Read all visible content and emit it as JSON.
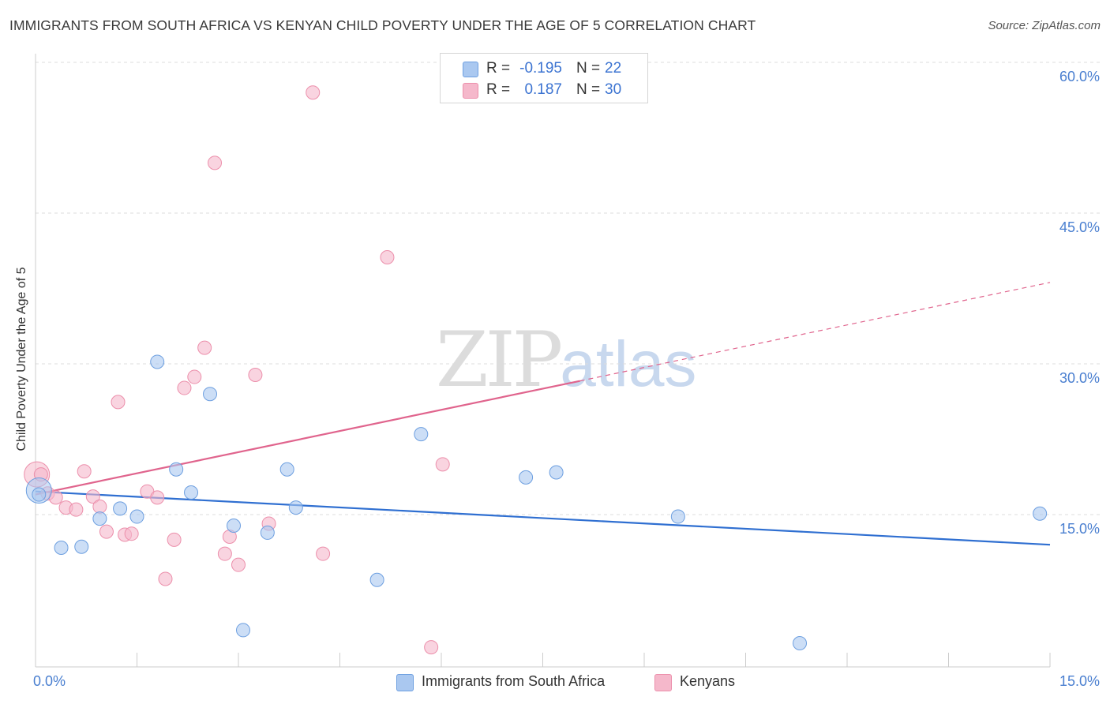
{
  "header": {
    "title": "IMMIGRANTS FROM SOUTH AFRICA VS KENYAN CHILD POVERTY UNDER THE AGE OF 5 CORRELATION CHART",
    "source": "Source: ZipAtlas.com"
  },
  "watermark": {
    "zip": "ZIP",
    "atlas": "atlas"
  },
  "legend_top": {
    "rows": [
      {
        "r_label": "R =",
        "r_value": "-0.195",
        "n_label": "N =",
        "n_value": "22",
        "color": "#aac8f0"
      },
      {
        "r_label": "R =",
        "r_value": "0.187",
        "n_label": "N =",
        "n_value": "30",
        "color": "#f5b8cb"
      }
    ]
  },
  "legend_bottom": {
    "items": [
      {
        "label": "Immigrants from South Africa",
        "color": "#aac8f0"
      },
      {
        "label": "Kenyans",
        "color": "#f5b8cb"
      }
    ]
  },
  "chart_data": {
    "type": "scatter",
    "ylabel": "Child Poverty Under the Age of 5",
    "xlabel": "",
    "xlim": [
      0,
      15
    ],
    "ylim": [
      0,
      60
    ],
    "x_tick_labels": [
      {
        "value": 0,
        "label": "0.0%"
      },
      {
        "value": 15,
        "label": "15.0%"
      }
    ],
    "y_tick_labels": [
      {
        "value": 15,
        "label": "15.0%"
      },
      {
        "value": 30,
        "label": "30.0%"
      },
      {
        "value": 45,
        "label": "45.0%"
      },
      {
        "value": 60,
        "label": "60.0%"
      }
    ],
    "grid": "horizontal dashed",
    "legend_position": "top-center",
    "series": [
      {
        "name": "Immigrants from South Africa",
        "color": "#aac8f0",
        "stroke": "#6d9fe0",
        "trend_color": "#2f6fd1",
        "trend": {
          "x0": 0,
          "y0": 17.3,
          "x1": 15,
          "y1": 12.0
        },
        "points": [
          [
            0.05,
            17.0
          ],
          [
            0.38,
            11.7
          ],
          [
            0.68,
            11.8
          ],
          [
            0.95,
            14.6
          ],
          [
            1.25,
            15.6
          ],
          [
            1.5,
            14.8
          ],
          [
            1.8,
            30.2
          ],
          [
            2.08,
            19.5
          ],
          [
            2.3,
            17.2
          ],
          [
            2.58,
            27.0
          ],
          [
            2.93,
            13.9
          ],
          [
            3.07,
            3.5
          ],
          [
            3.43,
            13.2
          ],
          [
            3.72,
            19.5
          ],
          [
            3.85,
            15.7
          ],
          [
            5.05,
            8.5
          ],
          [
            5.7,
            23.0
          ],
          [
            7.25,
            18.7
          ],
          [
            7.7,
            19.2
          ],
          [
            9.5,
            14.8
          ],
          [
            11.3,
            2.2
          ],
          [
            14.85,
            15.1
          ]
        ],
        "big_point": [
          0.05,
          17.4
        ]
      },
      {
        "name": "Kenyans",
        "color": "#f5b8cb",
        "stroke": "#ec8fab",
        "trend_color": "#e0648d",
        "trend": {
          "x0": 0,
          "y0": 17.0,
          "x1": 8.05,
          "y1": 28.3
        },
        "trend_dashed": {
          "x0": 8.05,
          "y0": 28.3,
          "x1": 15,
          "y1": 38.1
        },
        "points": [
          [
            0.18,
            17.1
          ],
          [
            0.3,
            16.7
          ],
          [
            0.45,
            15.7
          ],
          [
            0.6,
            15.5
          ],
          [
            0.72,
            19.3
          ],
          [
            0.85,
            16.8
          ],
          [
            0.95,
            15.8
          ],
          [
            1.05,
            13.3
          ],
          [
            1.22,
            26.2
          ],
          [
            1.32,
            13.0
          ],
          [
            1.42,
            13.1
          ],
          [
            1.65,
            17.3
          ],
          [
            1.8,
            16.7
          ],
          [
            1.92,
            8.6
          ],
          [
            2.05,
            12.5
          ],
          [
            2.2,
            27.6
          ],
          [
            2.35,
            28.7
          ],
          [
            2.5,
            31.6
          ],
          [
            2.65,
            50.0
          ],
          [
            2.8,
            11.1
          ],
          [
            2.87,
            12.8
          ],
          [
            3.0,
            10.0
          ],
          [
            3.25,
            28.9
          ],
          [
            3.45,
            14.1
          ],
          [
            4.1,
            57.0
          ],
          [
            4.25,
            11.1
          ],
          [
            5.2,
            40.6
          ],
          [
            5.85,
            1.8
          ],
          [
            6.02,
            20.0
          ],
          [
            0.08,
            19.0
          ]
        ],
        "big_point": [
          0.02,
          19.0
        ]
      }
    ]
  }
}
